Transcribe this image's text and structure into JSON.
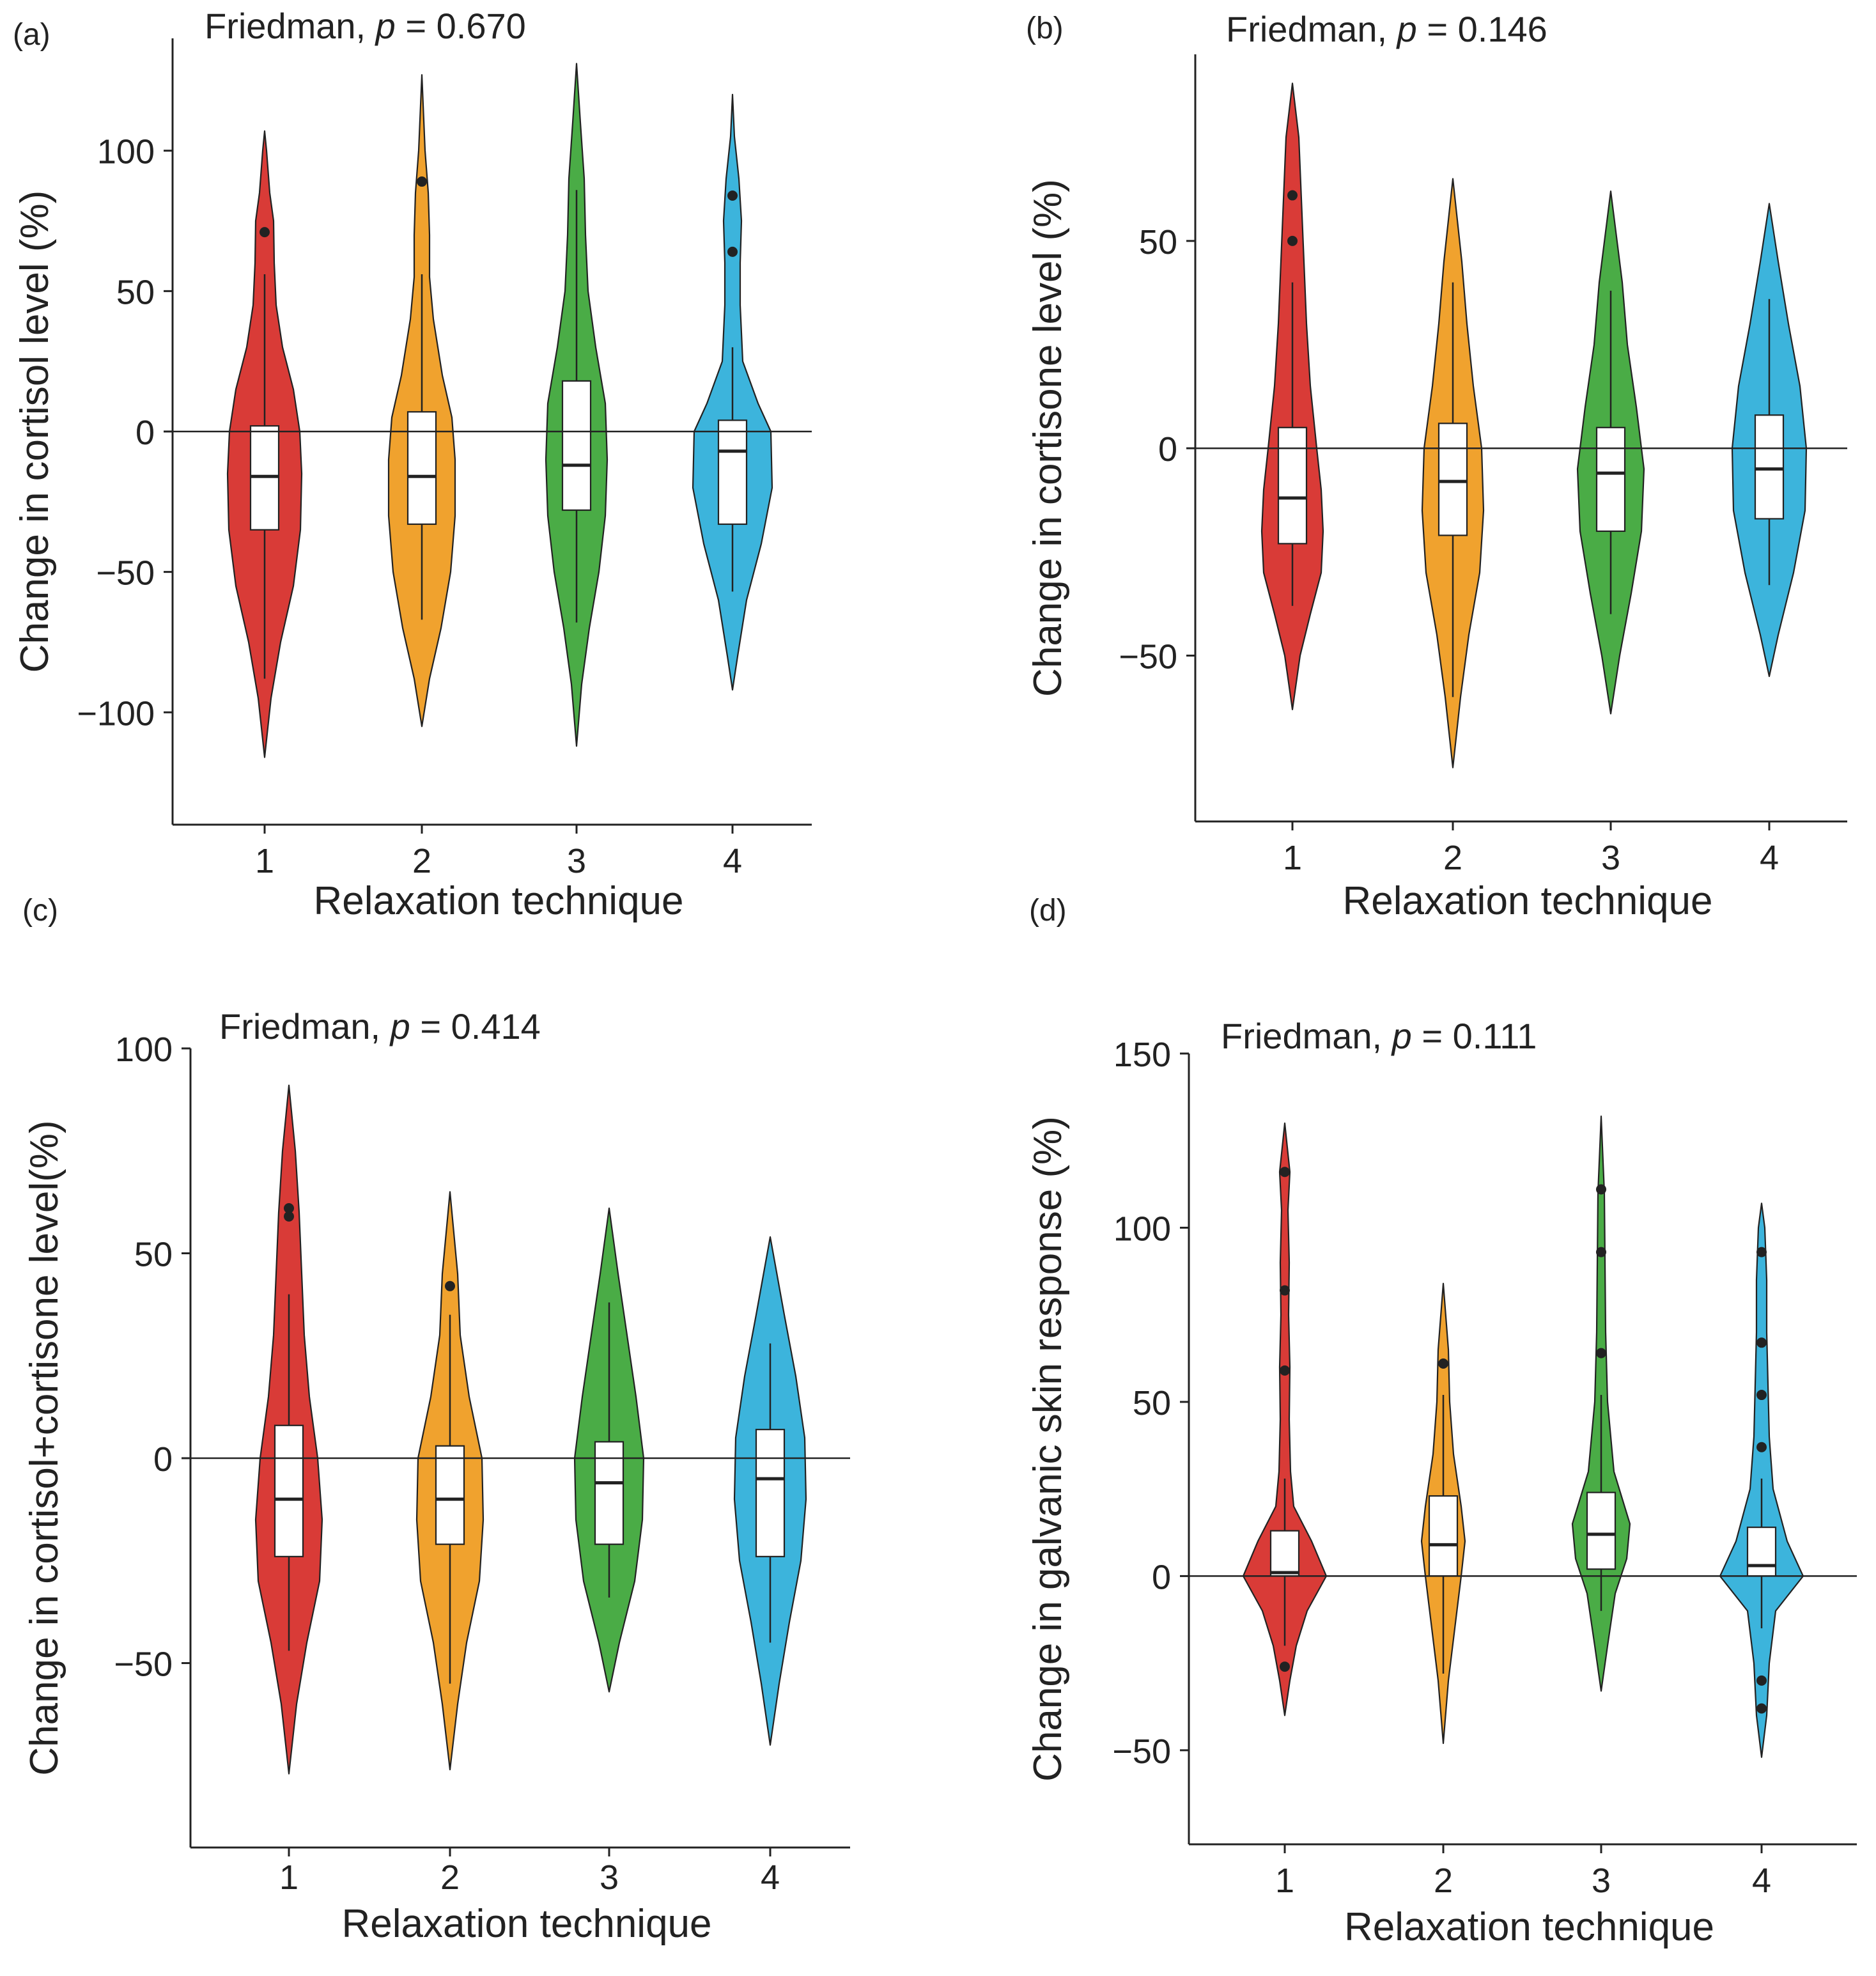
{
  "figure": {
    "colors": {
      "1": "#d93b37",
      "2": "#f0a22e",
      "3": "#4aac46",
      "4": "#3cb4dc"
    },
    "box_fill": "#ffffff",
    "line_color": "#222222"
  },
  "chart_data": [
    {
      "panel": "a",
      "type": "violin",
      "panel_label": "(a)",
      "stat_prefix": "Friedman, ",
      "stat_p": "p",
      "stat_value": " = 0.670",
      "xlabel": "Relaxation technique",
      "ylabel": "Change in cortisol level (%)",
      "categories": [
        "1",
        "2",
        "3",
        "4"
      ],
      "ylim": [
        -140,
        140
      ],
      "yticks": [
        100,
        50,
        0,
        -50,
        -100
      ],
      "ytick_labels": [
        "100",
        "50",
        "0",
        "−50",
        "−100"
      ],
      "reference_line": 0,
      "groups": [
        {
          "category": "1",
          "whisker_low": -88,
          "q1": -35,
          "median": -16,
          "q3": 2,
          "whisker_high": 56,
          "outliers": [
            71
          ],
          "density": [
            [
              -116,
              0
            ],
            [
              -95,
              10
            ],
            [
              -75,
              25
            ],
            [
              -55,
              45
            ],
            [
              -35,
              56
            ],
            [
              -15,
              58
            ],
            [
              0,
              55
            ],
            [
              15,
              45
            ],
            [
              30,
              28
            ],
            [
              45,
              18
            ],
            [
              60,
              15
            ],
            [
              75,
              14
            ],
            [
              85,
              8
            ],
            [
              100,
              3
            ],
            [
              107,
              0
            ]
          ]
        },
        {
          "category": "2",
          "whisker_low": -67,
          "q1": -33,
          "median": -16,
          "q3": 7,
          "whisker_high": 56,
          "outliers": [
            89
          ],
          "density": [
            [
              -105,
              0
            ],
            [
              -88,
              12
            ],
            [
              -70,
              30
            ],
            [
              -50,
              45
            ],
            [
              -30,
              52
            ],
            [
              -10,
              52
            ],
            [
              5,
              47
            ],
            [
              20,
              32
            ],
            [
              40,
              18
            ],
            [
              55,
              12
            ],
            [
              70,
              12
            ],
            [
              85,
              10
            ],
            [
              100,
              5
            ],
            [
              127,
              0
            ]
          ]
        },
        {
          "category": "3",
          "whisker_low": -68,
          "q1": -28,
          "median": -12,
          "q3": 18,
          "whisker_high": 86,
          "outliers": [],
          "density": [
            [
              -112,
              0
            ],
            [
              -90,
              8
            ],
            [
              -70,
              20
            ],
            [
              -50,
              35
            ],
            [
              -30,
              45
            ],
            [
              -10,
              48
            ],
            [
              10,
              45
            ],
            [
              30,
              30
            ],
            [
              50,
              18
            ],
            [
              70,
              14
            ],
            [
              90,
              12
            ],
            [
              110,
              6
            ],
            [
              131,
              0
            ]
          ]
        },
        {
          "category": "4",
          "whisker_low": -57,
          "q1": -33,
          "median": -7,
          "q3": 4,
          "whisker_high": 30,
          "outliers": [
            84,
            64
          ],
          "density": [
            [
              -92,
              0
            ],
            [
              -80,
              8
            ],
            [
              -60,
              22
            ],
            [
              -40,
              45
            ],
            [
              -20,
              62
            ],
            [
              0,
              60
            ],
            [
              10,
              40
            ],
            [
              25,
              16
            ],
            [
              45,
              12
            ],
            [
              60,
              12
            ],
            [
              75,
              14
            ],
            [
              90,
              10
            ],
            [
              105,
              3
            ],
            [
              120,
              0
            ]
          ]
        }
      ]
    },
    {
      "panel": "b",
      "type": "violin",
      "panel_label": "(b)",
      "stat_prefix": "Friedman, ",
      "stat_p": "p",
      "stat_value": " = 0.146",
      "xlabel": "Relaxation technique",
      "ylabel": "Change in cortisone level (%)",
      "categories": [
        "1",
        "2",
        "3",
        "4"
      ],
      "ylim": [
        -90,
        95
      ],
      "yticks": [
        50,
        0,
        -50
      ],
      "ytick_labels": [
        "50",
        "0",
        "−50"
      ],
      "reference_line": 0,
      "groups": [
        {
          "category": "1",
          "whisker_low": -38,
          "q1": -23,
          "median": -12,
          "q3": 5,
          "whisker_high": 40,
          "outliers": [
            61,
            50
          ],
          "density": [
            [
              -63,
              0
            ],
            [
              -50,
              12
            ],
            [
              -40,
              28
            ],
            [
              -30,
              45
            ],
            [
              -20,
              48
            ],
            [
              -10,
              45
            ],
            [
              0,
              38
            ],
            [
              15,
              28
            ],
            [
              30,
              22
            ],
            [
              45,
              18
            ],
            [
              60,
              14
            ],
            [
              75,
              10
            ],
            [
              88,
              0
            ]
          ]
        },
        {
          "category": "2",
          "whisker_low": -60,
          "q1": -21,
          "median": -8,
          "q3": 6,
          "whisker_high": 40,
          "outliers": [],
          "density": [
            [
              -77,
              0
            ],
            [
              -60,
              12
            ],
            [
              -45,
              25
            ],
            [
              -30,
              42
            ],
            [
              -15,
              48
            ],
            [
              0,
              45
            ],
            [
              15,
              32
            ],
            [
              30,
              22
            ],
            [
              45,
              14
            ],
            [
              65,
              0
            ]
          ]
        },
        {
          "category": "3",
          "whisker_low": -40,
          "q1": -20,
          "median": -6,
          "q3": 5,
          "whisker_high": 38,
          "outliers": [],
          "density": [
            [
              -64,
              0
            ],
            [
              -50,
              14
            ],
            [
              -35,
              32
            ],
            [
              -20,
              48
            ],
            [
              -5,
              52
            ],
            [
              10,
              40
            ],
            [
              25,
              26
            ],
            [
              40,
              18
            ],
            [
              62,
              0
            ]
          ]
        },
        {
          "category": "4",
          "whisker_low": -33,
          "q1": -17,
          "median": -5,
          "q3": 8,
          "whisker_high": 36,
          "outliers": [],
          "density": [
            [
              -55,
              0
            ],
            [
              -45,
              14
            ],
            [
              -30,
              38
            ],
            [
              -15,
              56
            ],
            [
              0,
              58
            ],
            [
              15,
              48
            ],
            [
              30,
              30
            ],
            [
              45,
              14
            ],
            [
              59,
              0
            ]
          ]
        }
      ]
    },
    {
      "panel": "c",
      "type": "violin",
      "panel_label": "(c)",
      "stat_prefix": "Friedman, ",
      "stat_p": "p",
      "stat_value": " = 0.414",
      "xlabel": "Relaxation technique",
      "ylabel": "Change in cortisol+cortisone level(%)",
      "categories": [
        "1",
        "2",
        "3",
        "4"
      ],
      "ylim": [
        -95,
        100
      ],
      "yticks": [
        100,
        50,
        0,
        -50
      ],
      "ytick_labels": [
        "100",
        "50",
        "0",
        "−50"
      ],
      "reference_line": 0,
      "groups": [
        {
          "category": "1",
          "whisker_low": -47,
          "q1": -24,
          "median": -10,
          "q3": 8,
          "whisker_high": 40,
          "outliers": [
            61,
            59
          ],
          "density": [
            [
              -77,
              0
            ],
            [
              -60,
              12
            ],
            [
              -45,
              28
            ],
            [
              -30,
              48
            ],
            [
              -15,
              52
            ],
            [
              0,
              45
            ],
            [
              15,
              32
            ],
            [
              30,
              24
            ],
            [
              45,
              20
            ],
            [
              60,
              16
            ],
            [
              75,
              10
            ],
            [
              91,
              0
            ]
          ]
        },
        {
          "category": "2",
          "whisker_low": -55,
          "q1": -21,
          "median": -10,
          "q3": 3,
          "whisker_high": 35,
          "outliers": [
            42
          ],
          "density": [
            [
              -76,
              0
            ],
            [
              -60,
              12
            ],
            [
              -45,
              26
            ],
            [
              -30,
              46
            ],
            [
              -15,
              52
            ],
            [
              0,
              50
            ],
            [
              15,
              30
            ],
            [
              30,
              16
            ],
            [
              45,
              12
            ],
            [
              65,
              0
            ]
          ]
        },
        {
          "category": "3",
          "whisker_low": -34,
          "q1": -21,
          "median": -6,
          "q3": 4,
          "whisker_high": 38,
          "outliers": [],
          "density": [
            [
              -57,
              0
            ],
            [
              -45,
              16
            ],
            [
              -30,
              40
            ],
            [
              -15,
              52
            ],
            [
              0,
              54
            ],
            [
              15,
              42
            ],
            [
              30,
              28
            ],
            [
              45,
              14
            ],
            [
              61,
              0
            ]
          ]
        },
        {
          "category": "4",
          "whisker_low": -45,
          "q1": -24,
          "median": -5,
          "q3": 7,
          "whisker_high": 28,
          "outliers": [],
          "density": [
            [
              -70,
              0
            ],
            [
              -55,
              14
            ],
            [
              -40,
              30
            ],
            [
              -25,
              48
            ],
            [
              -10,
              56
            ],
            [
              5,
              54
            ],
            [
              20,
              40
            ],
            [
              35,
              22
            ],
            [
              54,
              0
            ]
          ]
        }
      ]
    },
    {
      "panel": "d",
      "type": "violin",
      "panel_label": "(d)",
      "stat_prefix": "Friedman, ",
      "stat_p": "p",
      "stat_value": " = 0.111",
      "xlabel": "Relaxation technique",
      "ylabel": "Change in galvanic skin response (%)",
      "categories": [
        "1",
        "2",
        "3",
        "4"
      ],
      "ylim": [
        -77,
        150
      ],
      "yticks": [
        150,
        100,
        50,
        0,
        -50
      ],
      "ytick_labels": [
        "150",
        "100",
        "50",
        "0",
        "−50"
      ],
      "reference_line": 0,
      "groups": [
        {
          "category": "1",
          "whisker_low": -20,
          "q1": 0,
          "median": 1,
          "q3": 13,
          "whisker_high": 28,
          "outliers": [
            116,
            82,
            59,
            -26
          ],
          "density": [
            [
              -40,
              0
            ],
            [
              -30,
              8
            ],
            [
              -20,
              18
            ],
            [
              -10,
              35
            ],
            [
              0,
              65
            ],
            [
              10,
              42
            ],
            [
              20,
              14
            ],
            [
              30,
              9
            ],
            [
              45,
              7
            ],
            [
              60,
              8
            ],
            [
              75,
              6
            ],
            [
              90,
              7
            ],
            [
              105,
              5
            ],
            [
              116,
              8
            ],
            [
              130,
              0
            ]
          ]
        },
        {
          "category": "2",
          "whisker_low": -28,
          "q1": 0,
          "median": 9,
          "q3": 23,
          "whisker_high": 52,
          "outliers": [
            61
          ],
          "density": [
            [
              -48,
              0
            ],
            [
              -30,
              8
            ],
            [
              -15,
              18
            ],
            [
              0,
              28
            ],
            [
              10,
              34
            ],
            [
              20,
              28
            ],
            [
              35,
              16
            ],
            [
              50,
              10
            ],
            [
              65,
              8
            ],
            [
              84,
              0
            ]
          ]
        },
        {
          "category": "3",
          "whisker_low": -10,
          "q1": 2,
          "median": 12,
          "q3": 24,
          "whisker_high": 52,
          "outliers": [
            111,
            93,
            64
          ],
          "density": [
            [
              -33,
              0
            ],
            [
              -20,
              10
            ],
            [
              -5,
              22
            ],
            [
              5,
              40
            ],
            [
              15,
              45
            ],
            [
              30,
              20
            ],
            [
              50,
              10
            ],
            [
              70,
              7
            ],
            [
              90,
              6
            ],
            [
              110,
              5
            ],
            [
              132,
              0
            ]
          ]
        },
        {
          "category": "4",
          "whisker_low": -15,
          "q1": 0,
          "median": 3,
          "q3": 14,
          "whisker_high": 28,
          "outliers": [
            93,
            67,
            52,
            37,
            -30,
            -38
          ],
          "density": [
            [
              -52,
              0
            ],
            [
              -40,
              8
            ],
            [
              -25,
              12
            ],
            [
              -10,
              22
            ],
            [
              0,
              65
            ],
            [
              10,
              40
            ],
            [
              25,
              18
            ],
            [
              40,
              12
            ],
            [
              55,
              10
            ],
            [
              70,
              8
            ],
            [
              85,
              8
            ],
            [
              100,
              5
            ],
            [
              107,
              0
            ]
          ]
        }
      ]
    }
  ]
}
